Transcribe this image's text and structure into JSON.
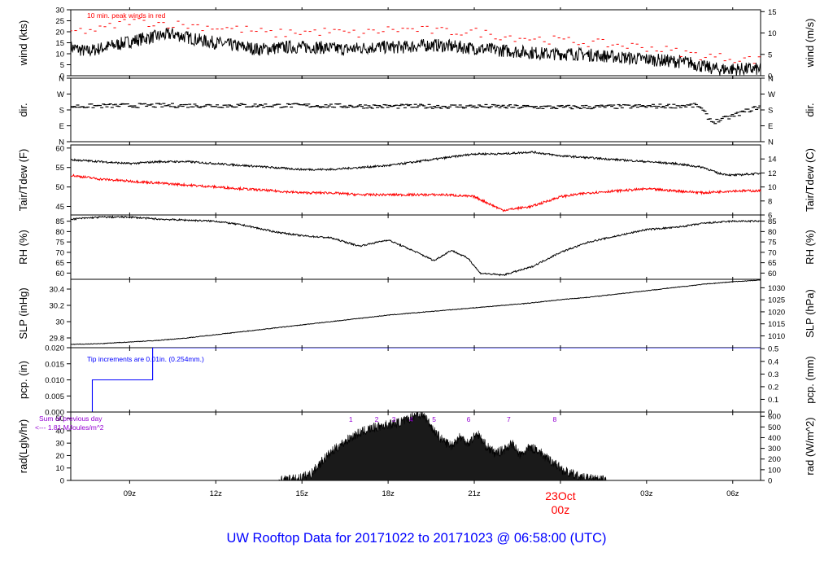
{
  "title": "UW Rooftop Data for 20171022  to  20171023 @ 06:58:00  (UTC)",
  "colors": {
    "axis": "#000000",
    "series": "#000000",
    "peak": "#ff0000",
    "dewpoint": "#ff0000",
    "precip": "#0000ff",
    "annotation": "#9400d3",
    "date_marker": "#ff0000",
    "title": "#0000ff"
  },
  "x_axis": {
    "tick_labels": [
      "09z",
      "12z",
      "15z",
      "18z",
      "21z",
      "00z",
      "03z",
      "06z"
    ],
    "tick_hours": [
      9,
      12,
      15,
      18,
      21,
      24,
      27,
      30
    ],
    "date_marker": {
      "date_label": "23Oct",
      "time_label": "00z",
      "hour": 24
    },
    "range_hours": [
      6.95,
      30.97
    ]
  },
  "chart_data": [
    {
      "type": "line",
      "panel": "wind",
      "ylabel_left": "wind (kts)",
      "ylabel_right": "wind (m/s)",
      "ylim": [
        0,
        30
      ],
      "yticks_left": [
        0,
        5,
        10,
        15,
        20,
        25,
        30
      ],
      "right_axis": {
        "ticks": [
          0,
          5,
          10,
          15
        ],
        "factor": 0.5144
      },
      "annotation": "10 min. peak winds in red",
      "series": [
        {
          "name": "wind speed",
          "color": "#000000",
          "noise": 3,
          "x": [
            6.95,
            7.5,
            8.5,
            9.5,
            10.5,
            11.5,
            12.5,
            13.5,
            14.5,
            15.5,
            16.5,
            17.5,
            18.5,
            19.5,
            20.5,
            21.5,
            22.5,
            23.5,
            24.5,
            25.5,
            26.5,
            27.5,
            28.5,
            29.0,
            29.5,
            30.0,
            30.97
          ],
          "y": [
            13,
            11,
            14,
            17,
            19,
            16,
            14,
            12,
            13,
            13,
            12,
            13,
            13,
            14,
            13,
            12,
            11,
            10,
            10,
            9,
            8,
            7,
            6,
            4,
            3,
            3,
            3
          ]
        },
        {
          "name": "10 min. peak",
          "color": "#ff0000",
          "style": "dash",
          "x": [
            6.95,
            8,
            9,
            10,
            11,
            12,
            13,
            14,
            15,
            16,
            17,
            18,
            19,
            20,
            21,
            22,
            23,
            24,
            25,
            26,
            27,
            28,
            29,
            30,
            30.97
          ],
          "y": [
            20,
            21,
            25,
            24,
            23,
            22,
            21,
            19,
            20,
            20,
            19,
            21,
            21,
            20,
            20,
            18,
            17,
            16,
            15,
            14,
            13,
            11,
            9,
            8,
            7
          ]
        }
      ]
    },
    {
      "type": "scatter",
      "panel": "dir",
      "ylabel_left": "dir.",
      "ylabel_right": "dir.",
      "ylim": [
        0,
        360
      ],
      "ytick_values": [
        0,
        90,
        180,
        270,
        360
      ],
      "ytick_labels": [
        "N",
        "E",
        "S",
        "W",
        "N"
      ],
      "series": [
        {
          "name": "wind direction",
          "color": "#000000",
          "noise": 12,
          "x": [
            6.95,
            9,
            12,
            15,
            18,
            21,
            24,
            27,
            28.8,
            29.3,
            29.9,
            30.4,
            30.97
          ],
          "y": [
            200,
            205,
            205,
            205,
            200,
            200,
            195,
            200,
            205,
            110,
            140,
            170,
            200
          ]
        }
      ]
    },
    {
      "type": "line",
      "panel": "temp",
      "ylabel_left": "Tair/Tdew (F)",
      "ylabel_right": "Tair/Tdew (C)",
      "ylim": [
        42.8,
        60.8
      ],
      "yticks_left": [
        45,
        50,
        55,
        60
      ],
      "right_axis": {
        "ticks": [
          6,
          8,
          10,
          12,
          14
        ],
        "unit": "C"
      },
      "series": [
        {
          "name": "Tair",
          "color": "#000000",
          "noise": 0.25,
          "x": [
            6.95,
            8,
            9,
            10,
            11,
            12,
            13,
            14,
            15,
            16,
            17,
            18,
            19,
            20,
            21,
            22,
            23,
            24,
            25,
            26,
            27,
            28,
            29,
            29.5,
            30,
            30.97
          ],
          "y": [
            57,
            56.5,
            56,
            56.5,
            56.5,
            56,
            55.5,
            55,
            54.5,
            54.5,
            55,
            55.5,
            56.5,
            57.5,
            58.5,
            58.5,
            59,
            58,
            57.5,
            57,
            56.5,
            56,
            55,
            53.5,
            53,
            53.5
          ]
        },
        {
          "name": "Tdew",
          "color": "#ff0000",
          "noise": 0.3,
          "x": [
            6.95,
            8,
            9,
            10,
            11,
            12,
            13,
            14,
            15,
            16,
            17,
            18,
            19,
            20,
            21,
            22,
            23,
            24,
            25,
            26,
            27,
            28,
            29,
            30,
            30.97
          ],
          "y": [
            53,
            52,
            51.5,
            51,
            50.5,
            50,
            49.5,
            49,
            48.5,
            48.5,
            48,
            48,
            48,
            48,
            47.5,
            44,
            45,
            47.5,
            48.5,
            49,
            49.5,
            49,
            48.5,
            49,
            49
          ]
        }
      ]
    },
    {
      "type": "line",
      "panel": "rh",
      "ylabel_left": "RH (%)",
      "ylabel_right": "RH (%)",
      "ylim": [
        57,
        88
      ],
      "yticks_left": [
        60,
        65,
        70,
        75,
        80,
        85
      ],
      "right_axis": {
        "ticks": [
          60,
          65,
          70,
          75,
          80,
          85
        ]
      },
      "series": [
        {
          "name": "RH",
          "color": "#000000",
          "noise": 0.4,
          "x": [
            6.95,
            8,
            9,
            10,
            11,
            12,
            13,
            14,
            15,
            16,
            17,
            18,
            19,
            19.6,
            20.2,
            20.8,
            21.2,
            22,
            23,
            24,
            25,
            26,
            27,
            28,
            29,
            30,
            30.97
          ],
          "y": [
            86,
            87,
            87,
            86,
            85.5,
            85,
            83,
            80,
            78,
            77,
            73,
            76,
            70,
            66,
            71,
            67,
            60,
            59,
            63,
            70,
            75,
            78,
            81,
            82,
            84,
            85,
            85
          ]
        }
      ]
    },
    {
      "type": "line",
      "panel": "slp",
      "ylabel_left": "SLP (inHg)",
      "ylabel_right": "SLP (hPa)",
      "ylim": [
        29.68,
        30.52
      ],
      "yticks_left": [
        29.8,
        30.0,
        30.2,
        30.4
      ],
      "right_axis": {
        "ticks": [
          1010,
          1015,
          1020,
          1025,
          1030
        ],
        "factor": 33.8639
      },
      "series": [
        {
          "name": "SLP",
          "color": "#000000",
          "noise": 0.004,
          "x": [
            6.95,
            8,
            9,
            10,
            11,
            12,
            13,
            14,
            15,
            16,
            17,
            18,
            19,
            20,
            21,
            22,
            23,
            24,
            25,
            26,
            27,
            28,
            29,
            30,
            30.97
          ],
          "y": [
            29.72,
            29.73,
            29.75,
            29.77,
            29.8,
            29.84,
            29.88,
            29.92,
            29.96,
            30.0,
            30.04,
            30.08,
            30.11,
            30.14,
            30.17,
            30.2,
            30.23,
            30.27,
            30.3,
            30.34,
            30.38,
            30.42,
            30.46,
            30.49,
            30.51
          ]
        }
      ]
    },
    {
      "type": "line",
      "panel": "pcp",
      "ylabel_left": "pcp. (in)",
      "ylabel_right": "pcp. (mm)",
      "ylim": [
        0,
        0.02
      ],
      "yticks_left": [
        0.0,
        0.005,
        0.01,
        0.015,
        0.02
      ],
      "ytick_labels_left": [
        "0.000",
        "0.005",
        "0.010",
        "0.015",
        "0.020"
      ],
      "right_axis": {
        "ticks": [
          0,
          0.1,
          0.2,
          0.3,
          0.4,
          0.5
        ],
        "factor": 25.4
      },
      "annotation": "Tip increments are 0.01in. (0.254mm.)",
      "series": [
        {
          "name": "precipitation",
          "color": "#0000ff",
          "step": true,
          "x": [
            6.95,
            7.7,
            9.8,
            30.97
          ],
          "y": [
            0,
            0.01,
            0.02,
            0.02
          ]
        }
      ]
    },
    {
      "type": "area",
      "panel": "rad",
      "ylabel_left": "rad(Lgly/hr)",
      "ylabel_right": "rad (W/m^2)",
      "ylim": [
        0,
        55
      ],
      "yticks_left": [
        0,
        10,
        20,
        30,
        40,
        50
      ],
      "right_axis": {
        "ticks": [
          0,
          100,
          200,
          300,
          400,
          500,
          600
        ],
        "factor": 11.63
      },
      "annotation_lines": [
        "Sum of previous day",
        "<--- 1.81 MJoules/m^2"
      ],
      "markers": {
        "labels": [
          "1",
          "2",
          "3",
          "4",
          "5",
          "6",
          "7",
          "8"
        ],
        "hours": [
          16.7,
          17.6,
          18.2,
          18.8,
          19.6,
          20.8,
          22.2,
          23.8
        ]
      },
      "series": [
        {
          "name": "solar radiation",
          "color": "#000000",
          "noise": 4,
          "x": [
            14.2,
            14.8,
            15.3,
            15.8,
            16.3,
            16.8,
            17.3,
            17.8,
            18.3,
            18.7,
            19.0,
            19.3,
            19.6,
            19.9,
            20.2,
            20.5,
            20.8,
            21.1,
            21.4,
            21.7,
            22.0,
            22.3,
            22.6,
            22.9,
            23.2,
            23.5,
            23.8,
            24.1,
            24.4,
            24.8,
            25.3,
            25.6
          ],
          "y": [
            0,
            1,
            5,
            18,
            28,
            36,
            41,
            44,
            46,
            49,
            54,
            51,
            40,
            32,
            28,
            35,
            30,
            38,
            28,
            22,
            24,
            30,
            20,
            26,
            25,
            18,
            14,
            8,
            5,
            2,
            0.5,
            0
          ]
        }
      ]
    }
  ]
}
